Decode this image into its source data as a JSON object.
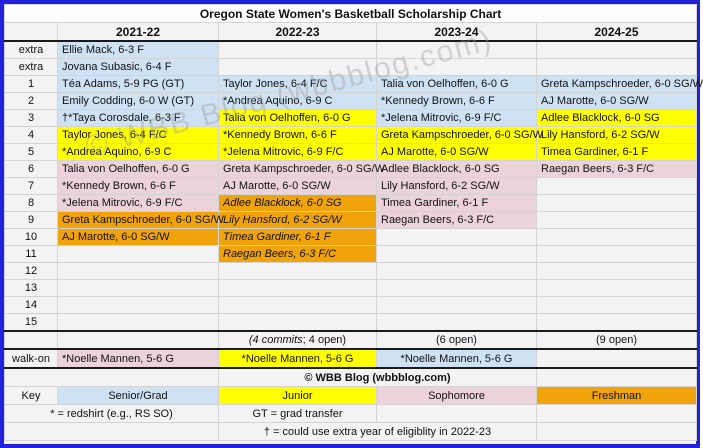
{
  "title": "Oregon State Women's Basketball Scholarship Chart",
  "watermark": "© WBB Blog (wbbblog.com)",
  "columns": [
    "2021-22",
    "2022-23",
    "2023-24",
    "2024-25"
  ],
  "colors": {
    "senior_grad": "#cfe2f3",
    "junior": "#ffff00",
    "sophomore": "#ecd3da",
    "freshman": "#f0a30a",
    "outer_border": "#2222dd"
  },
  "rows": [
    {
      "label": "extra",
      "cells": [
        {
          "text": "Ellie Mack, 6-3 F",
          "cls": "sg"
        },
        {
          "text": "",
          "cls": ""
        },
        {
          "text": "",
          "cls": ""
        },
        {
          "text": "",
          "cls": ""
        }
      ]
    },
    {
      "label": "extra",
      "cells": [
        {
          "text": "Jovana Subasic, 6-4 F",
          "cls": "sg"
        },
        {
          "text": "",
          "cls": ""
        },
        {
          "text": "",
          "cls": ""
        },
        {
          "text": "",
          "cls": ""
        }
      ]
    },
    {
      "label": "1",
      "cells": [
        {
          "text": "Téa Adams, 5-9 PG (GT)",
          "cls": "sg"
        },
        {
          "text": "Taylor Jones, 6-4 F/C",
          "cls": "sg"
        },
        {
          "text": "Talia von Oelhoffen, 6-0 G",
          "cls": "sg"
        },
        {
          "text": "Greta Kampschroeder, 6-0 SG/W",
          "cls": "sg"
        }
      ]
    },
    {
      "label": "2",
      "cells": [
        {
          "text": "Emily Codding, 6-0 W (GT)",
          "cls": "sg"
        },
        {
          "text": "*Andrea Aquino, 6-9 C",
          "cls": "sg"
        },
        {
          "text": "*Kennedy Brown, 6-6 F",
          "cls": "sg"
        },
        {
          "text": "AJ Marotte, 6-0 SG/W",
          "cls": "sg"
        }
      ]
    },
    {
      "label": "3",
      "cells": [
        {
          "text": "†*Taya Corosdale, 6-3 F",
          "cls": "sg"
        },
        {
          "text": "Talia von Oelhoffen, 6-0 G",
          "cls": "jr"
        },
        {
          "text": "*Jelena Mitrovic, 6-9 F/C",
          "cls": "sg"
        },
        {
          "text": "Adlee Blacklock, 6-0 SG",
          "cls": "jr"
        }
      ]
    },
    {
      "label": "4",
      "cells": [
        {
          "text": "Taylor Jones, 6-4 F/C",
          "cls": "jr"
        },
        {
          "text": "*Kennedy Brown, 6-6 F",
          "cls": "jr"
        },
        {
          "text": "Greta Kampschroeder, 6-0 SG/W",
          "cls": "jr"
        },
        {
          "text": "Lily Hansford, 6-2 SG/W",
          "cls": "jr"
        }
      ]
    },
    {
      "label": "5",
      "cells": [
        {
          "text": "*Andrea Aquino, 6-9 C",
          "cls": "jr"
        },
        {
          "text": "*Jelena Mitrovic, 6-9 F/C",
          "cls": "jr"
        },
        {
          "text": "AJ Marotte, 6-0 SG/W",
          "cls": "jr"
        },
        {
          "text": "Timea Gardiner, 6-1 F",
          "cls": "jr"
        }
      ]
    },
    {
      "label": "6",
      "cells": [
        {
          "text": "Talia von Oelhoffen, 6-0 G",
          "cls": "so"
        },
        {
          "text": "Greta Kampschroeder, 6-0 SG/W",
          "cls": "so"
        },
        {
          "text": "Adlee Blacklock, 6-0 SG",
          "cls": "so"
        },
        {
          "text": "Raegan Beers, 6-3 F/C",
          "cls": "so"
        }
      ]
    },
    {
      "label": "7",
      "cells": [
        {
          "text": "*Kennedy Brown, 6-6 F",
          "cls": "so"
        },
        {
          "text": "AJ Marotte, 6-0 SG/W",
          "cls": "so"
        },
        {
          "text": "Lily Hansford, 6-2 SG/W",
          "cls": "so"
        },
        {
          "text": "",
          "cls": ""
        }
      ]
    },
    {
      "label": "8",
      "cells": [
        {
          "text": "*Jelena Mitrovic, 6-9 F/C",
          "cls": "so"
        },
        {
          "text": "Adlee Blacklock, 6-0 SG",
          "cls": "fr it"
        },
        {
          "text": "Timea Gardiner, 6-1 F",
          "cls": "so"
        },
        {
          "text": "",
          "cls": ""
        }
      ]
    },
    {
      "label": "9",
      "cells": [
        {
          "text": "Greta Kampschroeder, 6-0 SG/W",
          "cls": "fr"
        },
        {
          "text": "Lily Hansford, 6-2 SG/W",
          "cls": "fr it"
        },
        {
          "text": "Raegan Beers, 6-3 F/C",
          "cls": "so"
        },
        {
          "text": "",
          "cls": ""
        }
      ]
    },
    {
      "label": "10",
      "cells": [
        {
          "text": "AJ Marotte, 6-0 SG/W",
          "cls": "fr"
        },
        {
          "text": "Timea Gardiner, 6-1 F",
          "cls": "fr it"
        },
        {
          "text": "",
          "cls": ""
        },
        {
          "text": "",
          "cls": ""
        }
      ]
    },
    {
      "label": "11",
      "cells": [
        {
          "text": "",
          "cls": ""
        },
        {
          "text": "Raegan Beers, 6-3 F/C",
          "cls": "fr it"
        },
        {
          "text": "",
          "cls": ""
        },
        {
          "text": "",
          "cls": ""
        }
      ]
    },
    {
      "label": "12",
      "cells": [
        {
          "text": "",
          "cls": ""
        },
        {
          "text": "",
          "cls": ""
        },
        {
          "text": "",
          "cls": ""
        },
        {
          "text": "",
          "cls": ""
        }
      ]
    },
    {
      "label": "13",
      "cells": [
        {
          "text": "",
          "cls": ""
        },
        {
          "text": "",
          "cls": ""
        },
        {
          "text": "",
          "cls": ""
        },
        {
          "text": "",
          "cls": ""
        }
      ]
    },
    {
      "label": "14",
      "cells": [
        {
          "text": "",
          "cls": ""
        },
        {
          "text": "",
          "cls": ""
        },
        {
          "text": "",
          "cls": ""
        },
        {
          "text": "",
          "cls": ""
        }
      ]
    },
    {
      "label": "15",
      "cells": [
        {
          "text": "",
          "cls": ""
        },
        {
          "text": "",
          "cls": ""
        },
        {
          "text": "",
          "cls": ""
        },
        {
          "text": "",
          "cls": ""
        }
      ]
    }
  ],
  "commits": {
    "c2022_italic": "(4 commits",
    "c2022_rest": "; 4 open)",
    "c2023": "(6 open)",
    "c2024": "(9 open)"
  },
  "walk_on": {
    "label": "walk-on",
    "c2021": "*Noelle Mannen, 5-6 G",
    "c2022": "*Noelle Mannen, 5-6 G",
    "c2023": "*Noelle Mannen, 5-6 G"
  },
  "copyright": "© WBB Blog (wbbblog.com)",
  "key": {
    "label": "Key",
    "senior_grad": "Senior/Grad",
    "junior": "Junior",
    "sophomore": "Sophomore",
    "freshman": "Freshman"
  },
  "footnotes": {
    "redshirt": "* = redshirt (e.g., RS SO)",
    "grad_transfer": "GT = grad transfer",
    "dagger": "† = could use extra year of eligiblity in 2022-23"
  }
}
